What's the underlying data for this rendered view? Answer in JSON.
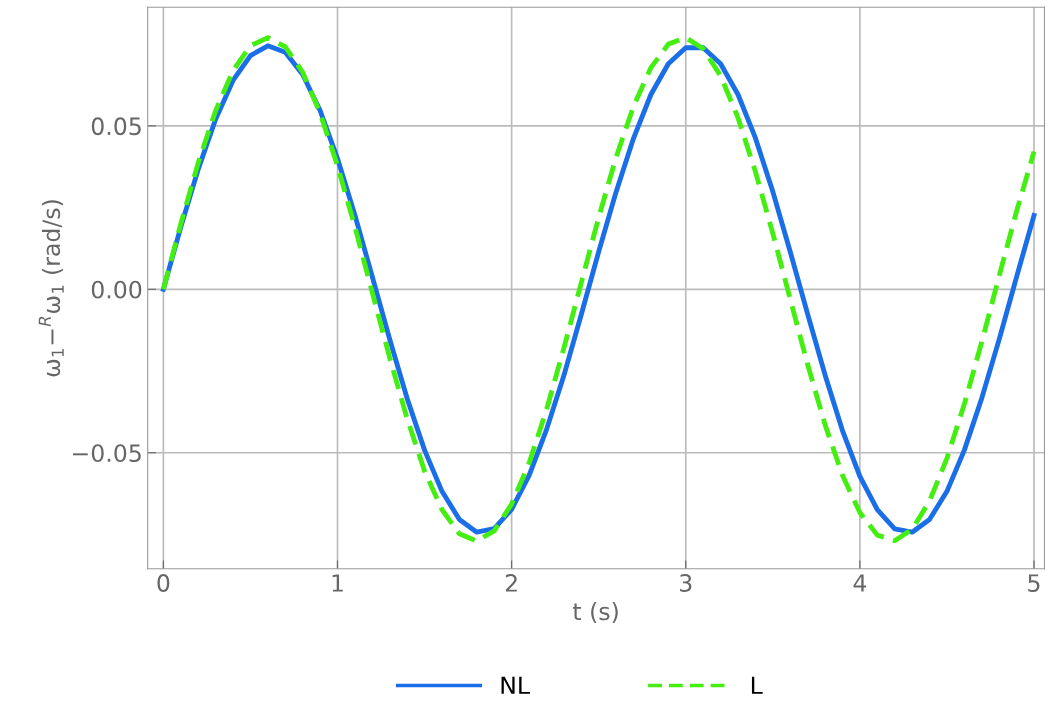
{
  "chart_data": {
    "type": "line",
    "xlabel": "t (s)",
    "ylabel": "ω$_{1}$−$^{R}$ω$_{1}$ (rad/s)",
    "x": [
      0,
      0.1,
      0.2,
      0.3,
      0.4,
      0.5,
      0.6,
      0.7,
      0.8,
      0.9,
      1.0,
      1.1,
      1.2,
      1.3,
      1.4,
      1.5,
      1.6,
      1.7,
      1.8,
      1.9,
      2.0,
      2.1,
      2.2,
      2.3,
      2.4,
      2.5,
      2.6,
      2.7,
      2.8,
      2.9,
      3.0,
      3.1,
      3.2,
      3.3,
      3.4,
      3.5,
      3.6,
      3.7,
      3.8,
      3.9,
      4.0,
      4.1,
      4.2,
      4.3,
      4.4,
      4.5,
      4.6,
      4.7,
      4.8,
      4.9,
      5.0
    ],
    "series": [
      {
        "name": "NL",
        "color": "#1a6ee8",
        "line_style": "solid",
        "values": [
          0,
          0.019,
          0.0367,
          0.052,
          0.0639,
          0.0715,
          0.0745,
          0.0725,
          0.0657,
          0.0547,
          0.04,
          0.0227,
          0.0038,
          -0.0153,
          -0.0334,
          -0.0492,
          -0.0618,
          -0.0704,
          -0.0743,
          -0.0732,
          -0.0673,
          -0.057,
          -0.043,
          -0.0264,
          -0.0077,
          0.0115,
          0.0298,
          0.0462,
          0.0596,
          0.069,
          0.0739,
          0.0739,
          0.069,
          0.0596,
          0.0463,
          0.0299,
          0.0115,
          -0.0076,
          -0.0262,
          -0.0432,
          -0.0572,
          -0.0674,
          -0.0733,
          -0.0743,
          -0.0704,
          -0.0618,
          -0.0492,
          -0.0333,
          -0.0153,
          0.0038,
          0.0226
        ]
      },
      {
        "name": "L",
        "color": "#44ee11",
        "line_style": "dashed",
        "values": [
          0,
          0.02,
          0.0387,
          0.0546,
          0.0669,
          0.0745,
          0.077,
          0.0742,
          0.0664,
          0.0539,
          0.0378,
          0.0191,
          -0.001,
          -0.021,
          -0.0396,
          -0.0556,
          -0.0674,
          -0.0748,
          -0.077,
          -0.0739,
          -0.0657,
          -0.0532,
          -0.0369,
          -0.018,
          0.002,
          0.022,
          0.0404,
          0.056,
          0.0678,
          0.075,
          0.077,
          0.0736,
          0.0653,
          0.0525,
          0.036,
          0.0171,
          -0.003,
          -0.023,
          -0.0414,
          -0.0569,
          -0.0683,
          -0.0752,
          -0.0769,
          -0.0734,
          -0.0648,
          -0.0517,
          -0.0351,
          -0.0161,
          0.0041,
          0.0239,
          0.0421
        ]
      }
    ],
    "xlim": [
      -0.09,
      5.06
    ],
    "xticks": [
      0,
      1,
      2,
      3,
      4,
      5
    ],
    "ylim": [
      -0.0855,
      0.0863
    ],
    "yticks": [
      {
        "value": -0.05,
        "label": "−0.05"
      },
      {
        "value": 0,
        "label": "0.00"
      },
      {
        "value": 0.05,
        "label": "0.05"
      }
    ],
    "grid": true,
    "legend": "bottom",
    "marker": "none"
  }
}
